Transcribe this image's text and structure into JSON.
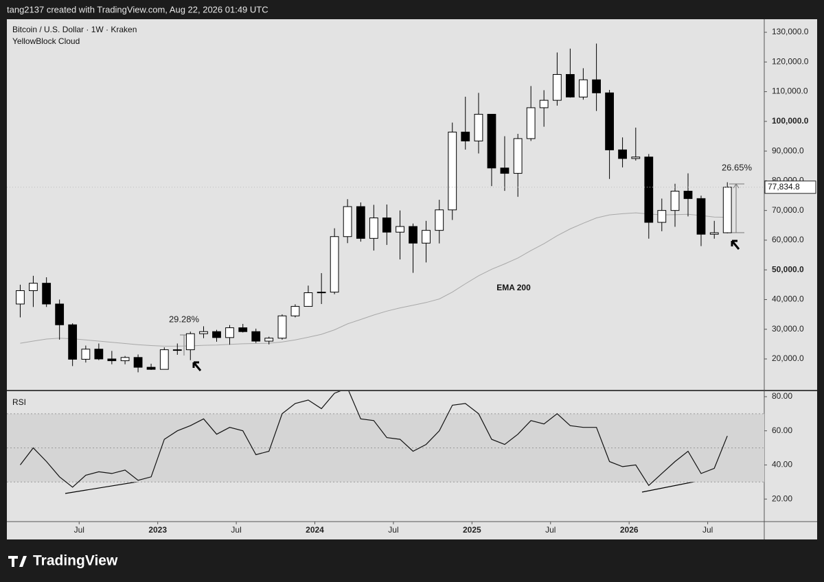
{
  "header": {
    "text": "tang2137 created with TradingView.com, Aug 22, 2026 01:49 UTC"
  },
  "footer": {
    "logo": "TradingView"
  },
  "chart_data": [
    {
      "type": "candlestick",
      "title": "Bitcoin / U.S. Dollar · 1W · Kraken",
      "subtitle": "YellowBlock Cloud",
      "annotations": [
        "29.28%",
        "26.65%"
      ],
      "x": [
        2022.125,
        2022.208,
        2022.292,
        2022.375,
        2022.458,
        2022.542,
        2022.625,
        2022.708,
        2022.792,
        2022.875,
        2022.958,
        2023.042,
        2023.125,
        2023.208,
        2023.292,
        2023.375,
        2023.458,
        2023.542,
        2023.625,
        2023.708,
        2023.792,
        2023.875,
        2023.958,
        2024.042,
        2024.125,
        2024.208,
        2024.292,
        2024.375,
        2024.458,
        2024.542,
        2024.625,
        2024.708,
        2024.792,
        2024.875,
        2024.958,
        2025.042,
        2025.125,
        2025.208,
        2025.292,
        2025.375,
        2025.458,
        2025.542,
        2025.625,
        2025.708,
        2025.792,
        2025.875,
        2025.958,
        2026.042,
        2026.125,
        2026.208,
        2026.292,
        2026.375,
        2026.458,
        2026.542,
        2026.625
      ],
      "open": [
        38500,
        43000,
        45500,
        38500,
        31500,
        19900,
        23300,
        20000,
        19400,
        20500,
        17200,
        16500,
        23100,
        23100,
        28500,
        29200,
        27200,
        30500,
        29200,
        26000,
        27000,
        34500,
        37700,
        42300,
        42500,
        61200,
        71300,
        60600,
        67500,
        62700,
        64600,
        59000,
        63300,
        70200,
        96400,
        93400,
        102400,
        84300,
        82500,
        94200,
        104600,
        107100,
        115800,
        108200,
        114000,
        109600,
        90400,
        87500,
        88000,
        66000,
        70000,
        76500,
        74000,
        62000,
        62500
      ],
      "high": [
        45000,
        48000,
        47500,
        40000,
        32000,
        24500,
        25200,
        22700,
        21000,
        21500,
        18400,
        23900,
        25200,
        29200,
        31000,
        29800,
        31400,
        31800,
        30200,
        27500,
        35000,
        38400,
        44700,
        48900,
        64000,
        73800,
        72700,
        71900,
        72000,
        70000,
        65600,
        66500,
        73600,
        99600,
        108300,
        109600,
        102500,
        95000,
        95800,
        111900,
        110500,
        123200,
        124500,
        117900,
        126200,
        110600,
        94600,
        97900,
        89000,
        74000,
        79000,
        82500,
        75000,
        66500,
        79500
      ],
      "low": [
        34000,
        37500,
        37500,
        26500,
        17600,
        18800,
        19600,
        18200,
        18200,
        15500,
        16300,
        16500,
        21400,
        19600,
        27000,
        25800,
        24800,
        28900,
        25400,
        24900,
        26500,
        34000,
        37600,
        38500,
        41800,
        59000,
        59500,
        56500,
        58400,
        53500,
        49000,
        52500,
        58900,
        66800,
        90500,
        89200,
        78200,
        76600,
        74600,
        93400,
        98200,
        105300,
        108000,
        107300,
        103500,
        80600,
        84500,
        86800,
        60500,
        63000,
        64500,
        68000,
        58000,
        60500,
        62300
      ],
      "close": [
        43000,
        45500,
        38500,
        31500,
        19900,
        23300,
        20000,
        19400,
        20500,
        17200,
        16500,
        23100,
        23100,
        28500,
        29200,
        27200,
        30500,
        29200,
        26000,
        27000,
        34500,
        37700,
        42300,
        42500,
        61200,
        71300,
        60600,
        67500,
        62700,
        64600,
        59000,
        63300,
        70200,
        96400,
        93400,
        102400,
        84300,
        82500,
        94200,
        104600,
        107100,
        115800,
        108200,
        114000,
        109600,
        90400,
        87500,
        88000,
        66000,
        70000,
        76500,
        74000,
        62000,
        62500,
        77834.8
      ],
      "ema": {
        "name": "EMA 200",
        "color": "#a8a8a8",
        "values": [
          25300,
          26000,
          26700,
          27000,
          26800,
          26400,
          26000,
          25600,
          25200,
          24800,
          24500,
          24300,
          24300,
          24400,
          24600,
          24700,
          24900,
          25100,
          25200,
          25300,
          25700,
          26400,
          27300,
          28300,
          29800,
          31800,
          33300,
          34800,
          36100,
          37200,
          38100,
          39000,
          40200,
          42500,
          45300,
          48000,
          50200,
          52000,
          54000,
          56500,
          58800,
          61500,
          63800,
          65700,
          67500,
          68500,
          68900,
          69200,
          68800,
          68500,
          68600,
          68700,
          68300,
          67800,
          67700
        ]
      },
      "current_price": {
        "value": 77834.8,
        "label": "77,834.8"
      },
      "xlim": [
        2022.04,
        2026.86
      ],
      "xticks": [
        {
          "value": 2022.5,
          "label": "Jul"
        },
        2023,
        {
          "value": 2023.5,
          "label": "Jul"
        },
        2024,
        {
          "value": 2024.5,
          "label": "Jul"
        },
        2025,
        {
          "value": 2025.5,
          "label": "Jul"
        },
        2026,
        {
          "value": 2026.5,
          "label": "Jul"
        }
      ],
      "ylim": [
        9600,
        134400
      ],
      "yticks": [
        {
          "value": 20000,
          "label": "20,000.0"
        },
        {
          "value": 30000,
          "label": "30,000.0"
        },
        {
          "value": 40000,
          "label": "40,000.0"
        },
        {
          "value": 50000,
          "label": "50,000.0"
        },
        {
          "value": 60000,
          "label": "60,000.0"
        },
        {
          "value": 70000,
          "label": "70,000.0"
        },
        {
          "value": 80000,
          "label": "80,000.0"
        },
        {
          "value": 90000,
          "label": "90,000.0"
        },
        {
          "value": 100000,
          "label": "100,000.0"
        },
        {
          "value": 110000,
          "label": "110,000.0"
        },
        {
          "value": 120000,
          "label": "120,000.0"
        },
        {
          "value": 130000,
          "label": "130,000.0"
        }
      ],
      "up_color": "#ffffff",
      "down_color": "#000000"
    },
    {
      "type": "line",
      "title": "RSI",
      "color": "#111111",
      "values": [
        40,
        50,
        42,
        33,
        27,
        34,
        36,
        35,
        37,
        31,
        33,
        55,
        60,
        63,
        67,
        58,
        62,
        60,
        46,
        48,
        70,
        76,
        78,
        73,
        82,
        85,
        67,
        66,
        56,
        55,
        48,
        52,
        60,
        75,
        76,
        70,
        55,
        52,
        58,
        66,
        64,
        70,
        63,
        62,
        62,
        42,
        39,
        40,
        28,
        35,
        42,
        48,
        35,
        38,
        57
      ],
      "levels": [
        30,
        50,
        70
      ],
      "ylim": [
        6.8,
        83.2
      ],
      "yticks": [
        {
          "value": 20,
          "label": "20.00"
        },
        {
          "value": 40,
          "label": "40.00"
        },
        {
          "value": 60,
          "label": "60.00"
        },
        {
          "value": 80,
          "label": "80.00"
        }
      ]
    }
  ]
}
